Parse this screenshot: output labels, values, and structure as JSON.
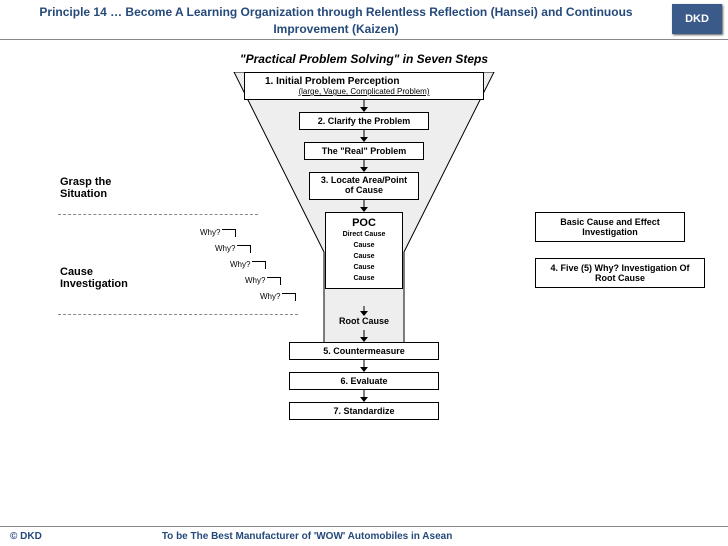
{
  "header": {
    "title": "Principle 14 … Become A Learning Organization through Relentless Reflection (Hansei) and Continuous Improvement (Kaizen)",
    "logo": "DKD"
  },
  "subtitle": "\"Practical Problem Solving\" in Seven Steps",
  "funnel": {
    "top_width": 260,
    "bottom_width": 80,
    "height": 180,
    "stem_height": 105,
    "fill": "#eeeeee",
    "stroke": "#000000"
  },
  "boxes": {
    "step1_title": "1.    Initial Problem Perception",
    "step1_sub": "(large, Vague, Complicated Problem)",
    "step2": "2. Clarify the Problem",
    "real": "The \"Real\" Problem",
    "step3": "3. Locate Area/Point of Cause",
    "poc_title": "POC",
    "poc_items": [
      "Direct Cause",
      "Cause",
      "Cause",
      "Cause",
      "Cause"
    ],
    "root": "Root Cause",
    "step5": "5. Countermeasure",
    "step6": "6. Evaluate",
    "step7": "7. Standardize"
  },
  "side": {
    "grasp": "Grasp the Situation",
    "cause": "Cause Investigation",
    "whys": [
      "Why?",
      "Why?",
      "Why?",
      "Why?",
      "Why?"
    ]
  },
  "right": {
    "basic": "Basic Cause and Effect Investigation",
    "five_why": "4. Five (5) Why? Investigation Of Root Cause"
  },
  "footer": {
    "copy": "© DKD",
    "tagline": "To be The Best Manufacturer of 'WOW' Automobiles in Asean"
  },
  "colors": {
    "title_color": "#254a7a",
    "logo_bg": "#3a5a8a"
  }
}
